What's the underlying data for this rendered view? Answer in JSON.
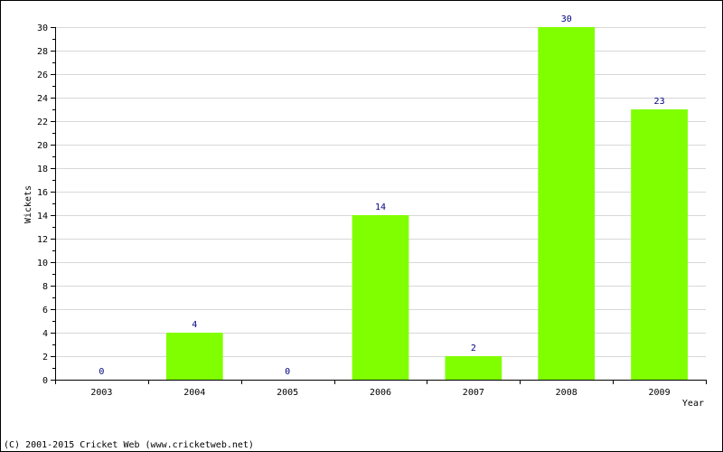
{
  "chart_data": {
    "type": "bar",
    "categories": [
      "2003",
      "2004",
      "2005",
      "2006",
      "2007",
      "2008",
      "2009"
    ],
    "values": [
      0,
      4,
      0,
      14,
      2,
      30,
      23
    ],
    "data_labels": [
      "0",
      "4",
      "0",
      "14",
      "2",
      "30",
      "23"
    ],
    "title": "",
    "xlabel": "Year",
    "ylabel": "Wickets",
    "ylim": [
      0,
      30
    ],
    "y_ticks": [
      0,
      2,
      4,
      6,
      8,
      10,
      12,
      14,
      16,
      18,
      20,
      22,
      24,
      26,
      28,
      30
    ],
    "y_tick_labels": [
      "0",
      "2",
      "4",
      "6",
      "8",
      "10",
      "12",
      "14",
      "16",
      "18",
      "20",
      "22",
      "24",
      "26",
      "28",
      "30"
    ],
    "grid": true,
    "legend": "none",
    "colors": {
      "bar": "#80ff00",
      "data_label": "#000080",
      "grid": "#d8d8d8",
      "axis": "#000000",
      "border": "#000000"
    }
  },
  "footer": {
    "copyright": "(C) 2001-2015 Cricket Web (www.cricketweb.net)"
  }
}
